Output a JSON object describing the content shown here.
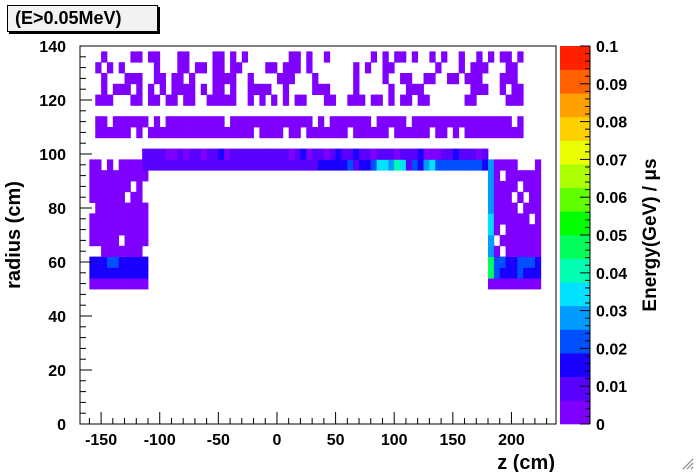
{
  "title_box": {
    "text": "(E>0.05MeV)"
  },
  "chart_data": {
    "type": "heatmap",
    "title": "(E>0.05MeV)",
    "xlabel": "z (cm)",
    "ylabel": "radius (cm)",
    "zlabel": "Energy(GeV) / μs",
    "xlim": [
      -168,
      238
    ],
    "ylim": [
      0,
      140
    ],
    "zlim": [
      0,
      0.1
    ],
    "x_ticks": [
      -150,
      -100,
      -50,
      0,
      50,
      100,
      150,
      200
    ],
    "y_ticks": [
      0,
      20,
      40,
      60,
      80,
      100,
      120,
      140
    ],
    "z_ticks": [
      "0",
      "0.01",
      "0.02",
      "0.03",
      "0.04",
      "0.05",
      "0.06",
      "0.07",
      "0.08",
      "0.09",
      "0.1"
    ],
    "colorbar_colors": [
      "#7f00ff",
      "#5a00ff",
      "#1a00ff",
      "#0050ff",
      "#009bff",
      "#00e2ff",
      "#00ffb2",
      "#00ff5a",
      "#00ff00",
      "#60ff00",
      "#aaff00",
      "#eaff00",
      "#ffd000",
      "#ffa000",
      "#ff6000",
      "#ff2000"
    ],
    "grid": false,
    "bin_width_cm": 5,
    "bin_height_cm": 4,
    "cells_note": "non-empty bins listed as [z_center_cm, r_center_cm, energy_GeV_per_us]; empty bins are white",
    "cells": []
  },
  "colors": {
    "frame": "#000000",
    "background": "#ffffff",
    "title_box_bg": "#f2f2f2"
  }
}
